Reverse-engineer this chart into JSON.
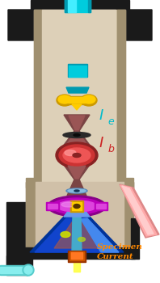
{
  "bg_color": "#ffffff",
  "black_housing": "#1a1a1a",
  "col_outer": "#c8b89a",
  "col_inner": "#ddd0b8",
  "col_shadow": "#a09070",
  "gun_cyan": "#00ccdd",
  "gun_cyan_light": "#44eeff",
  "gun_cyan_dark": "#009ab0",
  "emitter_gold": "#cc9900",
  "emitter_gold_light": "#ffcc00",
  "beam_dark": "#7a4444",
  "beam_med": "#9a5555",
  "aperture_black": "#222222",
  "lens_red_dark": "#882222",
  "lens_red": "#cc3333",
  "lens_red_light": "#ee5555",
  "ie_color": "#00bbcc",
  "ib_color": "#cc2222",
  "aperture2_blue": "#5588bb",
  "aperture2_light": "#88bbdd",
  "magnet_dark": "#880088",
  "magnet": "#bb00bb",
  "magnet_light": "#dd44dd",
  "magnet_gold": "#cc9900",
  "magnet_gold_light": "#ffcc00",
  "finallens_dark": "#003399",
  "finallens": "#1144cc",
  "finallens_light": "#4488ee",
  "finallens_cyan": "#44aacc",
  "yellow_spot": "#ccdd00",
  "beam_yellow": "#ffff88",
  "specimen_dark": "#993300",
  "specimen": "#cc5500",
  "specimen_light": "#ff7722",
  "yellow_glow": "#ffff44",
  "pink_tube": "#ffaaaa",
  "pink_tube_light": "#ffcccc",
  "pink_tube_dark": "#dd8888",
  "cyan_tube": "#55cccc",
  "cyan_tube_light": "#88eeee",
  "specimen_text": "#ff8800",
  "lower_housing_outer": "#b0a090",
  "lower_housing_inner": "#d0c0a8",
  "figsize": [
    1.98,
    3.5
  ],
  "dpi": 100
}
